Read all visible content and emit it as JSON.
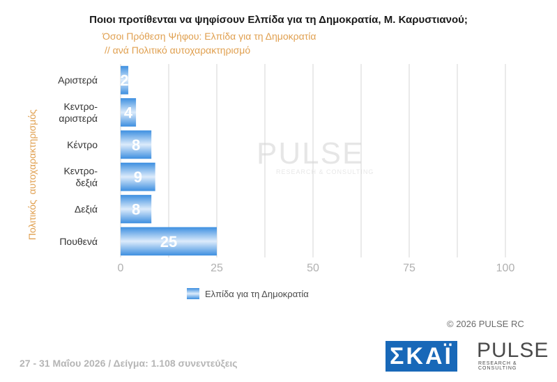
{
  "title": "Ποιοι προτίθενται να ψηφίσουν Ελπίδα για τη Δημοκρατία, Μ. Καρυστιανού;",
  "subtitle_line1": "Όσοι Πρόθεση Ψήφου: Ελπίδα για τη Δημοκρατία",
  "subtitle_line2": "// ανά Πολιτικό    αυτοχαρακτηρισμό",
  "watermark": {
    "brand": "PULSE",
    "tagline": "RESEARCH & CONSULTING"
  },
  "copyright": "©  2026  PULSE RC",
  "footer": "27 - 31  Μαΐου 2026  /  Δείγμα:  1.108 συνεντεύξεις",
  "logos": {
    "skai": "ΣΚΑΪ",
    "pulse": "PULSE",
    "pulse_tagline": "RESEARCH & CONSULTING"
  },
  "colors": {
    "bar": "#3d8fe0",
    "bar_light": "#dcebfb",
    "accent": "#e0a050"
  },
  "chart_data": {
    "type": "bar",
    "orientation": "horizontal",
    "categories": [
      [
        "Αριστερά"
      ],
      [
        "Κεντρο-",
        "αριστερά"
      ],
      [
        "Κέντρο"
      ],
      [
        "Κεντρο-",
        "δεξιά"
      ],
      [
        "Δεξιά"
      ],
      [
        "Πουθενά"
      ]
    ],
    "series": [
      {
        "name": "Ελπίδα για τη Δημοκρατία",
        "values": [
          2,
          4,
          8,
          9,
          8,
          25
        ]
      }
    ],
    "ylabel": "Πολιτικός  αυτοχαρακτηρισμός",
    "xlim": [
      0,
      100
    ],
    "xticks": [
      0,
      25,
      50,
      75,
      100
    ],
    "grid": true,
    "legend": "bottom"
  }
}
